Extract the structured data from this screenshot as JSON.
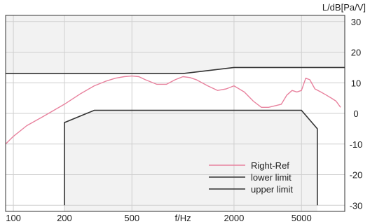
{
  "chart_data": {
    "type": "line",
    "x_scale": "log",
    "y_unit_label": "L/dB[Pa/V]",
    "x_unit_label": "f/Hz",
    "xlim": [
      90,
      9000
    ],
    "ylim": [
      -32,
      32
    ],
    "x_ticks": [
      {
        "value": 100,
        "label": "100"
      },
      {
        "value": 200,
        "label": "200"
      },
      {
        "value": 500,
        "label": "500"
      },
      {
        "value": 2000,
        "label": "2000"
      },
      {
        "value": 5000,
        "label": "5000"
      }
    ],
    "y_ticks": [
      {
        "value": 30,
        "label": "30"
      },
      {
        "value": 20,
        "label": "20"
      },
      {
        "value": 10,
        "label": "10"
      },
      {
        "value": 0,
        "label": "0"
      },
      {
        "value": -10,
        "label": "-10"
      },
      {
        "value": -20,
        "label": "-20"
      },
      {
        "value": -30,
        "label": "-30"
      }
    ],
    "grid": true,
    "legend_position": "bottom-right",
    "colors": {
      "right_ref": "#e8829e",
      "limits": "#333333",
      "band_fill": "#f2f2f2",
      "grid": "#cfcfcf"
    },
    "series": [
      {
        "name": "Right-Ref",
        "points": [
          [
            90,
            -10
          ],
          [
            100,
            -7.5
          ],
          [
            120,
            -4
          ],
          [
            150,
            -1
          ],
          [
            200,
            3
          ],
          [
            250,
            6.5
          ],
          [
            300,
            9
          ],
          [
            350,
            10.5
          ],
          [
            400,
            11.5
          ],
          [
            450,
            12
          ],
          [
            500,
            12.2
          ],
          [
            550,
            12
          ],
          [
            600,
            11
          ],
          [
            700,
            9.5
          ],
          [
            800,
            9.5
          ],
          [
            900,
            11
          ],
          [
            1000,
            12
          ],
          [
            1100,
            11.7
          ],
          [
            1200,
            11
          ],
          [
            1400,
            9
          ],
          [
            1600,
            7.5
          ],
          [
            1800,
            8
          ],
          [
            2000,
            9
          ],
          [
            2300,
            7
          ],
          [
            2600,
            4
          ],
          [
            2900,
            2
          ],
          [
            3200,
            2
          ],
          [
            3500,
            2.5
          ],
          [
            3800,
            3
          ],
          [
            4100,
            6
          ],
          [
            4400,
            7.5
          ],
          [
            4700,
            7
          ],
          [
            5000,
            7.5
          ],
          [
            5300,
            11.5
          ],
          [
            5600,
            11
          ],
          [
            6000,
            8
          ],
          [
            6500,
            7
          ],
          [
            7000,
            6
          ],
          [
            7500,
            5
          ],
          [
            8000,
            4
          ],
          [
            8500,
            2
          ]
        ]
      },
      {
        "name": "lower limit",
        "points": [
          [
            200,
            -30
          ],
          [
            200,
            -3
          ],
          [
            300,
            1
          ],
          [
            5000,
            1
          ],
          [
            6200,
            -5
          ],
          [
            6200,
            -30
          ]
        ]
      },
      {
        "name": "upper limit",
        "points": [
          [
            90,
            13
          ],
          [
            1000,
            13
          ],
          [
            2000,
            15
          ],
          [
            9000,
            15
          ]
        ]
      }
    ]
  }
}
